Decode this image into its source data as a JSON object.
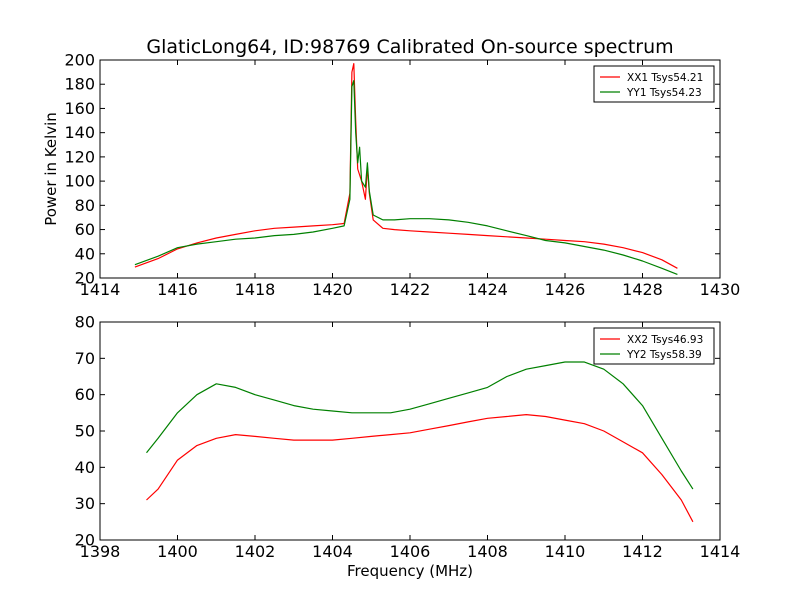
{
  "chart_data": [
    {
      "type": "line",
      "title": "GlaticLong64, ID:98769 Calibrated On-source spectrum",
      "xlabel": "",
      "ylabel": "Power in Kelvin",
      "xlim": [
        1414,
        1430
      ],
      "ylim": [
        20,
        200
      ],
      "xticks": [
        "1414",
        "1416",
        "1418",
        "1420",
        "1422",
        "1424",
        "1426",
        "1428",
        "1430"
      ],
      "yticks": [
        "20",
        "40",
        "60",
        "80",
        "100",
        "120",
        "140",
        "160",
        "180",
        "200"
      ],
      "grid": false,
      "legend_position": "top-right",
      "series": [
        {
          "name": "XX1 Tsys54.21",
          "color": "#ff0000",
          "points": [
            [
              1414.9,
              29
            ],
            [
              1415.5,
              36
            ],
            [
              1416,
              44
            ],
            [
              1416.5,
              49
            ],
            [
              1417,
              53
            ],
            [
              1417.5,
              56
            ],
            [
              1418,
              59
            ],
            [
              1418.5,
              61
            ],
            [
              1419,
              62
            ],
            [
              1419.5,
              63
            ],
            [
              1420,
              64
            ],
            [
              1420.3,
              65
            ],
            [
              1420.45,
              90
            ],
            [
              1420.5,
              190
            ],
            [
              1420.55,
              197
            ],
            [
              1420.6,
              150
            ],
            [
              1420.65,
              110
            ],
            [
              1420.75,
              100
            ],
            [
              1420.85,
              85
            ],
            [
              1420.9,
              112
            ],
            [
              1420.95,
              90
            ],
            [
              1421.05,
              68
            ],
            [
              1421.3,
              61
            ],
            [
              1421.6,
              60
            ],
            [
              1422,
              59
            ],
            [
              1422.5,
              58
            ],
            [
              1423,
              57
            ],
            [
              1423.5,
              56
            ],
            [
              1424,
              55
            ],
            [
              1424.5,
              54
            ],
            [
              1425,
              53
            ],
            [
              1425.5,
              52
            ],
            [
              1426,
              51
            ],
            [
              1426.5,
              50
            ],
            [
              1427,
              48
            ],
            [
              1427.5,
              45
            ],
            [
              1428,
              41
            ],
            [
              1428.5,
              35
            ],
            [
              1428.9,
              28
            ]
          ]
        },
        {
          "name": "YY1 Tsys54.23",
          "color": "#008000",
          "points": [
            [
              1414.9,
              31
            ],
            [
              1415.5,
              38
            ],
            [
              1416,
              45
            ],
            [
              1416.5,
              48
            ],
            [
              1417,
              50
            ],
            [
              1417.5,
              52
            ],
            [
              1418,
              53
            ],
            [
              1418.5,
              55
            ],
            [
              1419,
              56
            ],
            [
              1419.5,
              58
            ],
            [
              1420,
              61
            ],
            [
              1420.3,
              63
            ],
            [
              1420.45,
              85
            ],
            [
              1420.5,
              178
            ],
            [
              1420.55,
              183
            ],
            [
              1420.6,
              140
            ],
            [
              1420.65,
              115
            ],
            [
              1420.7,
              128
            ],
            [
              1420.75,
              100
            ],
            [
              1420.85,
              95
            ],
            [
              1420.9,
              115
            ],
            [
              1420.95,
              92
            ],
            [
              1421.05,
              72
            ],
            [
              1421.3,
              68
            ],
            [
              1421.6,
              68
            ],
            [
              1422,
              69
            ],
            [
              1422.5,
              69
            ],
            [
              1423,
              68
            ],
            [
              1423.5,
              66
            ],
            [
              1424,
              63
            ],
            [
              1424.5,
              59
            ],
            [
              1425,
              55
            ],
            [
              1425.5,
              51
            ],
            [
              1426,
              49
            ],
            [
              1426.5,
              46
            ],
            [
              1427,
              43
            ],
            [
              1427.5,
              39
            ],
            [
              1428,
              34
            ],
            [
              1428.5,
              28
            ],
            [
              1428.9,
              23
            ]
          ]
        }
      ]
    },
    {
      "type": "line",
      "title": "",
      "xlabel": "Frequency (MHz)",
      "ylabel": "",
      "xlim": [
        1398,
        1414
      ],
      "ylim": [
        20,
        80
      ],
      "xticks": [
        "1398",
        "1400",
        "1402",
        "1404",
        "1406",
        "1408",
        "1410",
        "1412",
        "1414"
      ],
      "yticks": [
        "20",
        "30",
        "40",
        "50",
        "60",
        "70",
        "80"
      ],
      "grid": false,
      "legend_position": "top-right",
      "series": [
        {
          "name": "XX2 Tsys46.93",
          "color": "#ff0000",
          "points": [
            [
              1399.2,
              31
            ],
            [
              1399.5,
              34
            ],
            [
              1400,
              42
            ],
            [
              1400.5,
              46
            ],
            [
              1401,
              48
            ],
            [
              1401.5,
              49
            ],
            [
              1402,
              48.5
            ],
            [
              1402.5,
              48
            ],
            [
              1403,
              47.5
            ],
            [
              1403.5,
              47.5
            ],
            [
              1404,
              47.5
            ],
            [
              1404.5,
              48
            ],
            [
              1405,
              48.5
            ],
            [
              1405.5,
              49
            ],
            [
              1406,
              49.5
            ],
            [
              1406.5,
              50.5
            ],
            [
              1407,
              51.5
            ],
            [
              1407.5,
              52.5
            ],
            [
              1408,
              53.5
            ],
            [
              1408.5,
              54
            ],
            [
              1409,
              54.5
            ],
            [
              1409.5,
              54
            ],
            [
              1410,
              53
            ],
            [
              1410.5,
              52
            ],
            [
              1411,
              50
            ],
            [
              1411.5,
              47
            ],
            [
              1412,
              44
            ],
            [
              1412.5,
              38
            ],
            [
              1413,
              31
            ],
            [
              1413.3,
              25
            ]
          ]
        },
        {
          "name": "YY2 Tsys58.39",
          "color": "#008000",
          "points": [
            [
              1399.2,
              44
            ],
            [
              1399.5,
              48
            ],
            [
              1400,
              55
            ],
            [
              1400.5,
              60
            ],
            [
              1401,
              63
            ],
            [
              1401.5,
              62
            ],
            [
              1402,
              60
            ],
            [
              1402.5,
              58.5
            ],
            [
              1403,
              57
            ],
            [
              1403.5,
              56
            ],
            [
              1404,
              55.5
            ],
            [
              1404.5,
              55
            ],
            [
              1405,
              55
            ],
            [
              1405.5,
              55
            ],
            [
              1406,
              56
            ],
            [
              1406.5,
              57.5
            ],
            [
              1407,
              59
            ],
            [
              1407.5,
              60.5
            ],
            [
              1408,
              62
            ],
            [
              1408.5,
              65
            ],
            [
              1409,
              67
            ],
            [
              1409.5,
              68
            ],
            [
              1410,
              69
            ],
            [
              1410.5,
              69
            ],
            [
              1411,
              67
            ],
            [
              1411.5,
              63
            ],
            [
              1412,
              57
            ],
            [
              1412.5,
              48
            ],
            [
              1413,
              39
            ],
            [
              1413.3,
              34
            ]
          ]
        }
      ]
    }
  ]
}
